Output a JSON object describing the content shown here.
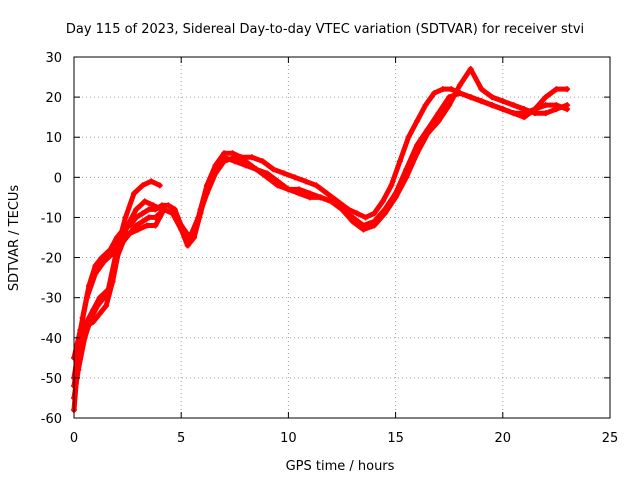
{
  "chart_data": {
    "type": "scatter",
    "title": "Day 115 of 2023, Sidereal Day-to-day VTEC variation (SDTVAR) for receiver stvi",
    "xlabel": "GPS time / hours",
    "ylabel": "SDTVAR / TECUs",
    "xlim": [
      0,
      25
    ],
    "ylim": [
      -60,
      30
    ],
    "xticks": [
      "0",
      "5",
      "10",
      "15",
      "20",
      "25"
    ],
    "yticks": [
      "-60",
      "-50",
      "-40",
      "-30",
      "-20",
      "-10",
      "0",
      "10",
      "20",
      "30"
    ],
    "grid": true,
    "marker": "+",
    "color": "#ff0000",
    "series": [
      {
        "x": [
          0.0,
          0.2,
          0.4,
          0.7,
          1.0,
          1.3,
          1.7,
          2.0,
          2.3,
          2.6,
          2.9,
          3.2,
          3.5,
          3.8,
          4.1,
          4.4,
          4.7,
          5.0,
          5.3,
          5.6,
          5.9,
          6.2,
          6.6,
          7.0,
          7.4,
          7.8,
          8.3,
          8.8,
          9.3,
          9.8,
          10.3,
          10.8,
          11.3,
          11.8,
          12.3,
          12.8,
          13.2,
          13.6,
          14.0,
          14.4,
          14.8,
          15.2,
          15.6,
          16.0,
          16.4,
          16.8,
          17.2,
          17.6,
          18.0,
          18.5,
          19.0,
          19.5,
          20.0,
          20.5,
          21.0,
          21.5,
          22.0,
          22.5,
          23.0
        ],
        "y": [
          -58,
          -45,
          -35,
          -27,
          -22,
          -20,
          -18,
          -15,
          -13,
          -12,
          -10,
          -9,
          -8,
          -8,
          -7,
          -7,
          -8,
          -12,
          -16,
          -14,
          -8,
          -2,
          3,
          6,
          6,
          5,
          5,
          4,
          2,
          1,
          0,
          -1,
          -2,
          -4,
          -6,
          -8,
          -9,
          -10,
          -9,
          -6,
          -2,
          4,
          10,
          14,
          18,
          21,
          22,
          22,
          21,
          20,
          19,
          18,
          17,
          16,
          16,
          17,
          18,
          18,
          17
        ]
      },
      {
        "x": [
          0.0,
          0.3,
          0.6,
          0.9,
          1.2,
          1.6,
          2.0,
          2.4,
          2.8,
          3.2,
          3.6,
          4.0
        ],
        "y": [
          -52,
          -42,
          -36,
          -33,
          -30,
          -28,
          -18,
          -10,
          -4,
          -2,
          -1,
          -2
        ]
      },
      {
        "x": [
          0.0,
          0.2,
          0.5,
          0.8,
          1.1,
          1.4,
          1.7,
          2.0,
          2.3,
          2.6,
          2.9,
          3.2,
          3.5,
          3.8,
          4.2,
          4.6,
          5.0,
          5.3,
          5.6,
          5.9,
          6.2,
          6.6,
          7.0,
          7.5,
          8.0,
          8.5,
          9.0,
          9.5,
          10.0,
          10.5,
          11.0,
          11.5,
          12.0,
          12.5,
          13.0,
          13.5,
          14.0,
          14.5,
          15.0,
          15.5,
          16.0,
          16.5,
          17.0,
          17.5,
          18.0,
          18.5,
          19.0,
          19.5,
          20.0,
          20.5,
          21.0,
          21.5,
          22.0,
          22.5,
          23.0
        ],
        "y": [
          -55,
          -48,
          -40,
          -35,
          -32,
          -30,
          -27,
          -20,
          -16,
          -14,
          -12,
          -11,
          -10,
          -10,
          -8,
          -9,
          -13,
          -17,
          -15,
          -9,
          -3,
          2,
          5,
          4,
          3,
          2,
          1,
          -1,
          -3,
          -4,
          -5,
          -5,
          -6,
          -8,
          -10,
          -12,
          -11,
          -8,
          -4,
          2,
          8,
          12,
          16,
          20,
          21,
          20,
          19,
          18,
          17,
          16,
          15,
          17,
          20,
          22,
          22
        ]
      },
      {
        "x": [
          0.0,
          0.3,
          0.6,
          0.9,
          1.2,
          1.5,
          1.8,
          2.1,
          2.5,
          2.9,
          3.3,
          3.7,
          4.1
        ],
        "y": [
          -50,
          -40,
          -37,
          -36,
          -34,
          -32,
          -26,
          -18,
          -12,
          -8,
          -6,
          -7,
          -8
        ]
      },
      {
        "x": [
          0.0,
          0.3,
          0.6,
          1.0,
          1.4,
          1.8,
          2.2,
          2.6,
          3.0,
          3.4,
          3.8,
          4.2,
          4.6,
          5.0,
          5.4,
          5.8,
          6.2,
          6.6,
          7.0,
          7.5,
          8.0,
          8.5,
          9.0,
          9.5,
          10.0,
          10.5,
          11.0,
          11.5,
          12.0,
          12.5,
          13.0,
          13.5,
          14.0,
          14.5,
          15.0,
          15.5,
          16.0,
          16.5,
          17.0,
          17.5,
          18.0,
          18.5,
          19.0,
          19.5,
          20.0,
          20.5,
          21.0,
          21.5,
          22.0,
          22.5,
          23.0
        ],
        "y": [
          -45,
          -38,
          -30,
          -24,
          -21,
          -19,
          -16,
          -14,
          -13,
          -12,
          -12,
          -8,
          -9,
          -12,
          -15,
          -10,
          -4,
          1,
          4,
          5,
          4,
          2,
          0,
          -2,
          -3,
          -3,
          -4,
          -5,
          -6,
          -8,
          -11,
          -13,
          -12,
          -9,
          -5,
          0,
          6,
          11,
          14,
          18,
          23,
          27,
          22,
          20,
          19,
          18,
          17,
          16,
          16,
          17,
          18
        ]
      }
    ]
  }
}
